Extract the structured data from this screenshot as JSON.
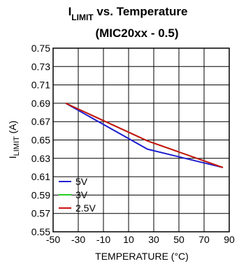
{
  "chart_data": {
    "type": "line",
    "title_main": "I",
    "title_sub": "LIMIT",
    "title_rest": " vs. Temperature",
    "title_line2": "(MIC20xx - 0.5)",
    "xlabel": "TEMPERATURE (°C)",
    "ylabel_main": "I",
    "ylabel_sub": "LIMIT",
    "ylabel_rest": " (A)",
    "xlim": [
      -50,
      90
    ],
    "ylim": [
      0.55,
      0.75
    ],
    "x_ticks": [
      "-50",
      "-30",
      "-10",
      "10",
      "30",
      "50",
      "70",
      "90"
    ],
    "y_ticks": [
      "0.55",
      "0.57",
      "0.59",
      "0.61",
      "0.63",
      "0.65",
      "0.67",
      "0.69",
      "0.71",
      "0.73",
      "0.75"
    ],
    "grid": true,
    "legend_position": "bottom-left",
    "series": [
      {
        "name": "5V",
        "color": "#1f1fd0",
        "x": [
          -40,
          25,
          85
        ],
        "y": [
          0.69,
          0.64,
          0.62
        ]
      },
      {
        "name": "3V",
        "color": "#22cc22",
        "x": [
          -40,
          25,
          85
        ],
        "y": [
          0.69,
          0.649,
          0.62
        ]
      },
      {
        "name": "2.5V",
        "color": "#cc1111",
        "x": [
          -40,
          25,
          85
        ],
        "y": [
          0.69,
          0.649,
          0.62
        ]
      }
    ]
  }
}
